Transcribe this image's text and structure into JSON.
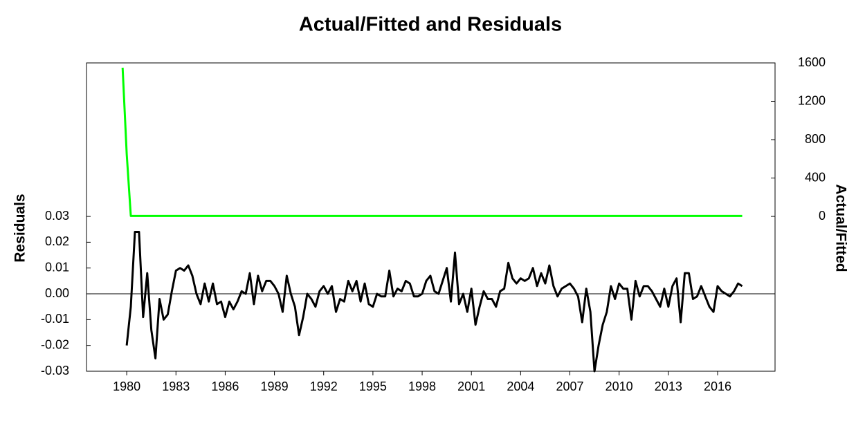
{
  "chart_data": {
    "type": "line",
    "title": "Actual/Fitted and Residuals",
    "ylabel": "Residuals",
    "y2label": "Actual/Fitted",
    "xlim": [
      1977.55,
      2019.5
    ],
    "xticks": [
      1980,
      1983,
      1986,
      1989,
      1992,
      1995,
      1998,
      2001,
      2004,
      2007,
      2010,
      2013,
      2016
    ],
    "ylim": [
      -0.03,
      0.0895
    ],
    "yticks": [
      -0.03,
      -0.02,
      -0.01,
      {
        "value": 0,
        "label": "0.00"
      },
      0.01,
      0.02,
      0.03
    ],
    "y2lim": [
      -1614,
      1600
    ],
    "y2ticks": [
      0,
      400,
      800,
      1200,
      1600
    ],
    "series": [
      {
        "color": "#00ff00",
        "axis": "y2",
        "x": [
          1979.75,
          1980.0,
          1980.25,
          2017.5
        ],
        "values": [
          1550,
          650,
          5,
          5
        ]
      },
      {
        "color": "#000000",
        "axis": "y",
        "x": [
          1980.0,
          1980.25,
          1980.5,
          1980.75,
          1981.0,
          1981.25,
          1981.5,
          1981.75,
          1982.0,
          1982.25,
          1982.5,
          1982.75,
          1983.0,
          1983.25,
          1983.5,
          1983.75,
          1984.0,
          1984.25,
          1984.5,
          1984.75,
          1985.0,
          1985.25,
          1985.5,
          1985.75,
          1986.0,
          1986.25,
          1986.5,
          1986.75,
          1987.0,
          1987.25,
          1987.5,
          1987.75,
          1988.0,
          1988.25,
          1988.5,
          1988.75,
          1989.0,
          1989.25,
          1989.5,
          1989.75,
          1990.0,
          1990.25,
          1990.5,
          1990.75,
          1991.0,
          1991.25,
          1991.5,
          1991.75,
          1992.0,
          1992.25,
          1992.5,
          1992.75,
          1993.0,
          1993.25,
          1993.5,
          1993.75,
          1994.0,
          1994.25,
          1994.5,
          1994.75,
          1995.0,
          1995.25,
          1995.5,
          1995.75,
          1996.0,
          1996.25,
          1996.5,
          1996.75,
          1997.0,
          1997.25,
          1997.5,
          1997.75,
          1998.0,
          1998.25,
          1998.5,
          1998.75,
          1999.0,
          1999.25,
          1999.5,
          1999.75,
          2000.0,
          2000.25,
          2000.5,
          2000.75,
          2001.0,
          2001.25,
          2001.5,
          2001.75,
          2002.0,
          2002.25,
          2002.5,
          2002.75,
          2003.0,
          2003.25,
          2003.5,
          2003.75,
          2004.0,
          2004.25,
          2004.5,
          2004.75,
          2005.0,
          2005.25,
          2005.5,
          2005.75,
          2006.0,
          2006.25,
          2006.5,
          2006.75,
          2007.0,
          2007.25,
          2007.5,
          2007.75,
          2008.0,
          2008.25,
          2008.5,
          2008.75,
          2009.0,
          2009.25,
          2009.5,
          2009.75,
          2010.0,
          2010.25,
          2010.5,
          2010.75,
          2011.0,
          2011.25,
          2011.5,
          2011.75,
          2012.0,
          2012.25,
          2012.5,
          2012.75,
          2013.0,
          2013.25,
          2013.5,
          2013.75,
          2014.0,
          2014.25,
          2014.5,
          2014.75,
          2015.0,
          2015.25,
          2015.5,
          2015.75,
          2016.0,
          2016.25,
          2016.5,
          2016.75,
          2017.0,
          2017.25,
          2017.5
        ],
        "values": [
          -0.02,
          -0.005,
          0.024,
          0.024,
          -0.009,
          0.008,
          -0.014,
          -0.025,
          -0.002,
          -0.01,
          -0.008,
          0.001,
          0.009,
          0.01,
          0.009,
          0.011,
          0.007,
          0.0,
          -0.004,
          0.004,
          -0.003,
          0.004,
          -0.004,
          -0.003,
          -0.009,
          -0.003,
          -0.006,
          -0.003,
          0.001,
          0.0,
          0.008,
          -0.004,
          0.007,
          0.001,
          0.005,
          0.005,
          0.003,
          0.0,
          -0.007,
          0.007,
          0.0,
          -0.005,
          -0.016,
          -0.009,
          0.0,
          -0.002,
          -0.005,
          0.001,
          0.003,
          0.0,
          0.003,
          -0.007,
          -0.002,
          -0.003,
          0.005,
          0.001,
          0.005,
          -0.003,
          0.004,
          -0.004,
          -0.005,
          0.0,
          -0.001,
          -0.001,
          0.009,
          -0.001,
          0.002,
          0.001,
          0.005,
          0.004,
          -0.001,
          -0.001,
          0.0,
          0.005,
          0.007,
          0.001,
          0.0,
          0.005,
          0.01,
          -0.003,
          0.016,
          -0.004,
          0.0,
          -0.007,
          0.002,
          -0.012,
          -0.005,
          0.001,
          -0.002,
          -0.002,
          -0.005,
          0.001,
          0.002,
          0.012,
          0.006,
          0.004,
          0.006,
          0.005,
          0.006,
          0.01,
          0.003,
          0.008,
          0.004,
          0.011,
          0.003,
          -0.001,
          0.002,
          0.003,
          0.004,
          0.002,
          -0.001,
          -0.011,
          0.002,
          -0.007,
          -0.03,
          -0.02,
          -0.012,
          -0.007,
          0.003,
          -0.002,
          0.004,
          0.002,
          0.002,
          -0.01,
          0.005,
          -0.001,
          0.003,
          0.003,
          0.001,
          -0.002,
          -0.005,
          0.002,
          -0.005,
          0.003,
          0.006,
          -0.011,
          0.008,
          0.008,
          -0.002,
          -0.001,
          0.003,
          -0.001,
          -0.005,
          -0.007,
          0.003,
          0.001,
          0.0,
          -0.001,
          0.001,
          0.004,
          0.003
        ]
      }
    ]
  }
}
